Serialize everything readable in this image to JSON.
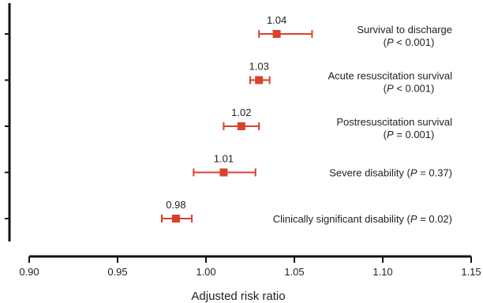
{
  "chart_data": {
    "type": "forest",
    "xlabel": "Adjusted risk ratio",
    "xlim": [
      0.9,
      1.15
    ],
    "xticks": [
      "0.90",
      "0.95",
      "1.00",
      "1.05",
      "1.10",
      "1.15"
    ],
    "marker_color": "#d9412b",
    "axis_color": "#111111",
    "grid": false,
    "rows": [
      {
        "estimate": 1.04,
        "estimate_label": "1.04",
        "ci": [
          1.03,
          1.06
        ],
        "label_lines": [
          {
            "before": "Survival to discharge",
            "p": "",
            "after": ""
          },
          {
            "before": "(",
            "p": "P",
            "after": " < 0.001)"
          }
        ]
      },
      {
        "estimate": 1.03,
        "estimate_label": "1.03",
        "ci": [
          1.025,
          1.036
        ],
        "label_lines": [
          {
            "before": "Acute resuscitation survival",
            "p": "",
            "after": ""
          },
          {
            "before": "(",
            "p": "P",
            "after": " < 0.001)"
          }
        ]
      },
      {
        "estimate": 1.02,
        "estimate_label": "1.02",
        "ci": [
          1.01,
          1.03
        ],
        "label_lines": [
          {
            "before": "Postresuscitation survival",
            "p": "",
            "after": ""
          },
          {
            "before": "(",
            "p": "P",
            "after": " = 0.001)"
          }
        ]
      },
      {
        "estimate": 1.01,
        "estimate_label": "1.01",
        "ci": [
          0.993,
          1.028
        ],
        "label_lines": [
          {
            "before": "Severe disability (",
            "p": "P",
            "after": " = 0.37)"
          }
        ]
      },
      {
        "estimate": 0.983,
        "estimate_label": "0.98",
        "ci": [
          0.975,
          0.992
        ],
        "label_lines": [
          {
            "before": "Clinically significant disability (",
            "p": "P",
            "after": " = 0.02)"
          }
        ]
      }
    ]
  }
}
